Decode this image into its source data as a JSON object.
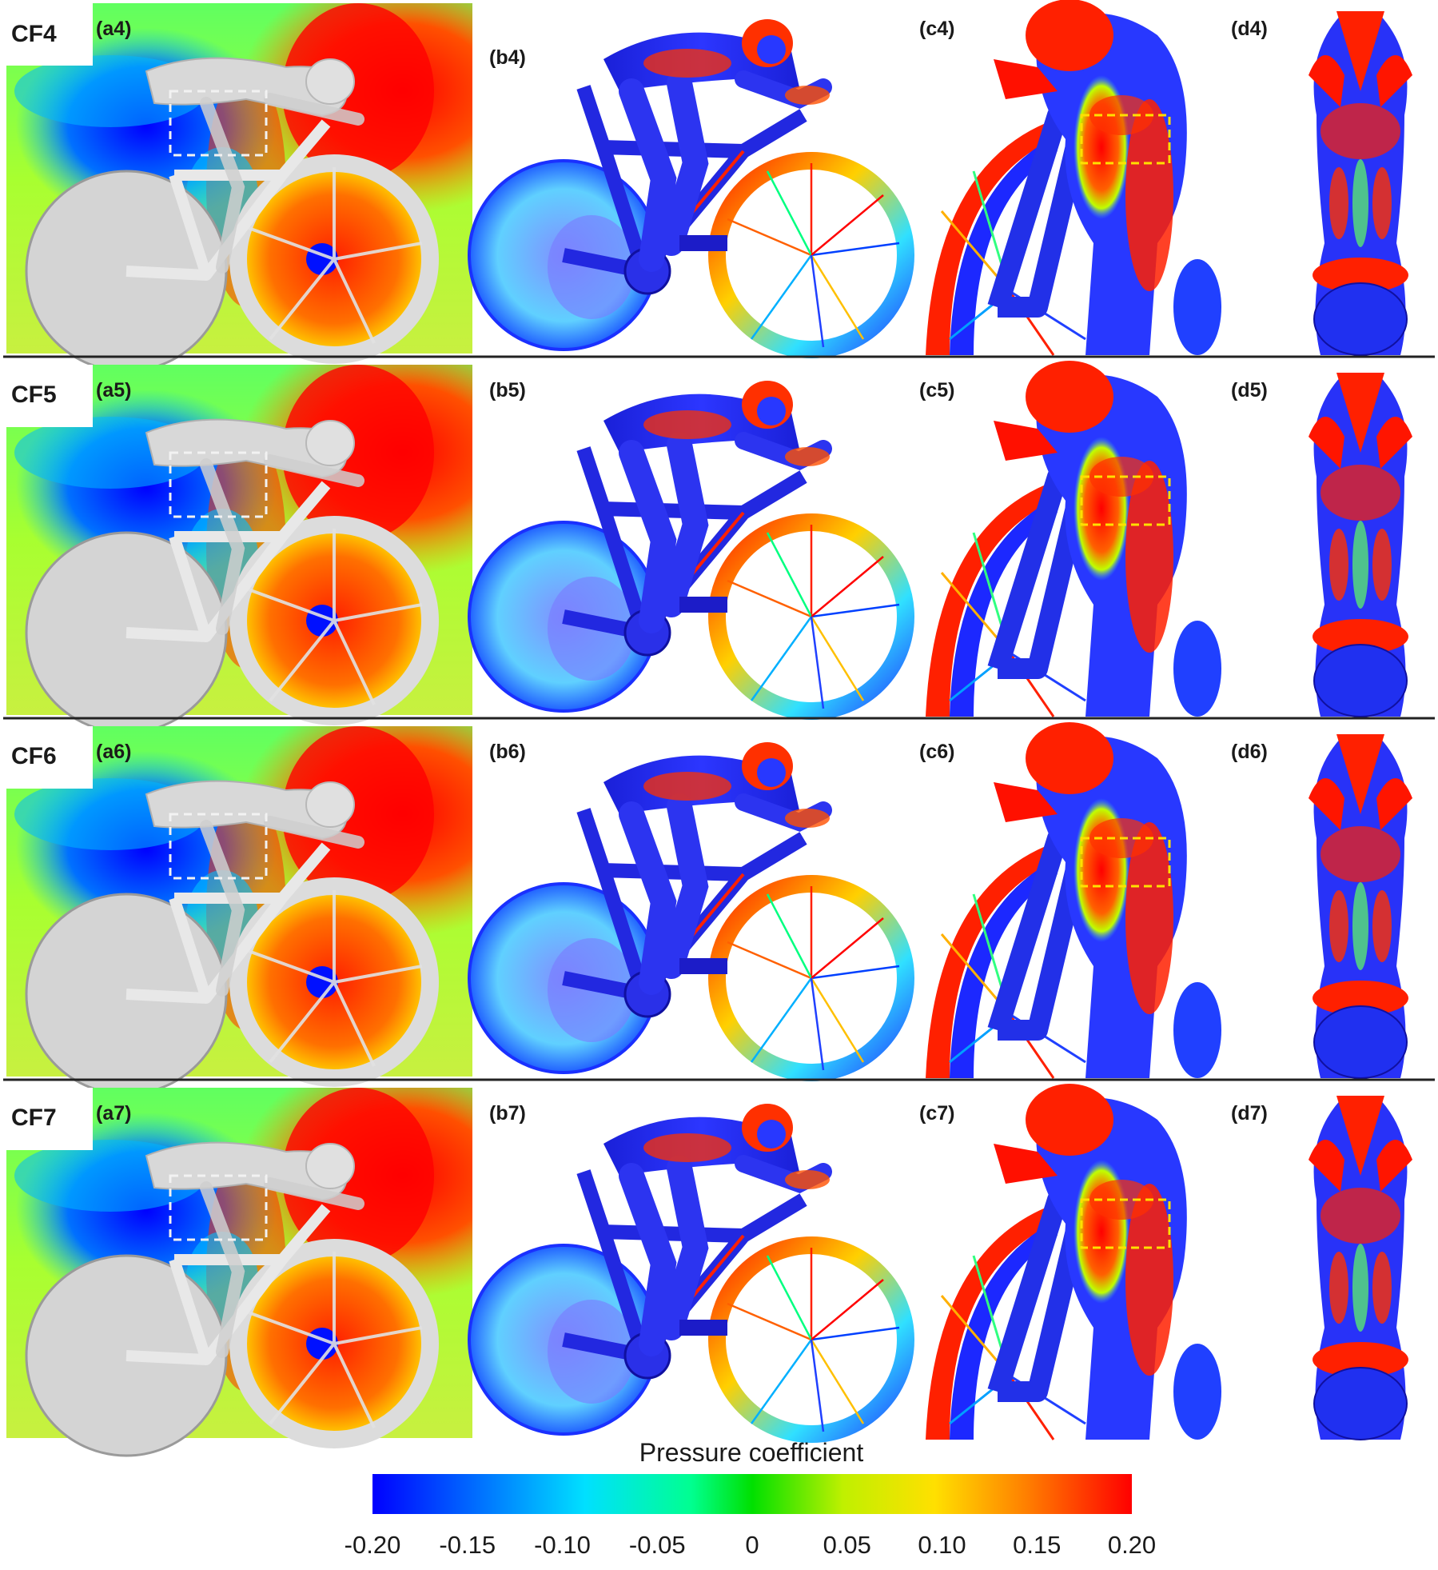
{
  "rows": [
    {
      "config": "CF4",
      "panels": [
        "(a4)",
        "(b4)",
        "(c4)",
        "(d4)"
      ]
    },
    {
      "config": "CF5",
      "panels": [
        "(a5)",
        "(b5)",
        "(c5)",
        "(d5)"
      ]
    },
    {
      "config": "CF6",
      "panels": [
        "(a6)",
        "(b6)",
        "(c6)",
        "(d6)"
      ]
    },
    {
      "config": "CF7",
      "panels": [
        "(a7)",
        "(b7)",
        "(c7)",
        "(d7)"
      ]
    }
  ],
  "colorbar": {
    "title": "Pressure coefficient",
    "ticks": [
      "-0.20",
      "-0.15",
      "-0.10",
      "-0.05",
      "0",
      "0.05",
      "0.10",
      "0.15",
      "0.20"
    ],
    "colors": [
      "#0000ff",
      "#00a8ff",
      "#00ffd0",
      "#00e400",
      "#c8f000",
      "#ffe000",
      "#ff9000",
      "#ff0000"
    ]
  }
}
